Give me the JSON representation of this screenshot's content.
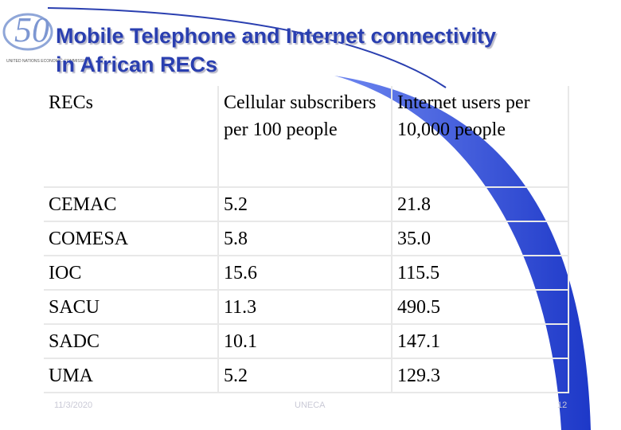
{
  "header": {
    "title_lines": [
      "Mobile Telephone and Internet connectivity",
      "in African RECs"
    ]
  },
  "table": {
    "columns": [
      "RECs",
      "Cellular subscribers per 100 people",
      "Internet users per 10,000 people"
    ],
    "rows": [
      [
        "CEMAC",
        "5.2",
        "21.8"
      ],
      [
        "COMESA",
        "5.8",
        "35.0"
      ],
      [
        "IOC",
        "15.6",
        "115.5"
      ],
      [
        "SACU",
        "11.3",
        "490.5"
      ],
      [
        "SADC",
        "10.1",
        "147.1"
      ],
      [
        "UMA",
        "5.2",
        "129.3"
      ]
    ]
  },
  "footer": {
    "date": "11/3/2020",
    "org": "UNECA",
    "page": "12"
  }
}
